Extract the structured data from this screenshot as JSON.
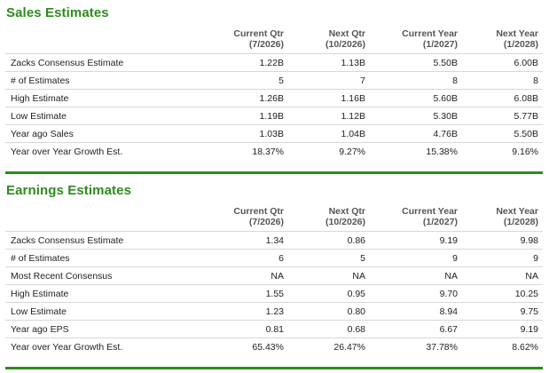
{
  "sales": {
    "title": "Sales Estimates",
    "columns": [
      {
        "line1": "Current Qtr",
        "line2": "(7/2026)"
      },
      {
        "line1": "Next Qtr",
        "line2": "(10/2026)"
      },
      {
        "line1": "Current Year",
        "line2": "(1/2027)"
      },
      {
        "line1": "Next Year",
        "line2": "(1/2028)"
      }
    ],
    "rows": [
      {
        "label": "Zacks Consensus Estimate",
        "values": [
          "1.22B",
          "1.13B",
          "5.50B",
          "6.00B"
        ]
      },
      {
        "label": "# of Estimates",
        "values": [
          "5",
          "7",
          "8",
          "8"
        ]
      },
      {
        "label": "High Estimate",
        "values": [
          "1.26B",
          "1.16B",
          "5.60B",
          "6.08B"
        ]
      },
      {
        "label": "Low Estimate",
        "values": [
          "1.19B",
          "1.12B",
          "5.30B",
          "5.77B"
        ]
      },
      {
        "label": "Year ago Sales",
        "values": [
          "1.03B",
          "1.04B",
          "4.76B",
          "5.50B"
        ]
      },
      {
        "label": "Year over Year Growth Est.",
        "values": [
          "18.37%",
          "9.27%",
          "15.38%",
          "9.16%"
        ]
      }
    ]
  },
  "earnings": {
    "title": "Earnings Estimates",
    "columns": [
      {
        "line1": "Current Qtr",
        "line2": "(7/2026)"
      },
      {
        "line1": "Next Qtr",
        "line2": "(10/2026)"
      },
      {
        "line1": "Current Year",
        "line2": "(1/2027)"
      },
      {
        "line1": "Next Year",
        "line2": "(1/2028)"
      }
    ],
    "rows": [
      {
        "label": "Zacks Consensus Estimate",
        "values": [
          "1.34",
          "0.86",
          "9.19",
          "9.98"
        ]
      },
      {
        "label": "# of Estimates",
        "values": [
          "6",
          "5",
          "9",
          "9"
        ]
      },
      {
        "label": "Most Recent Consensus",
        "values": [
          "NA",
          "NA",
          "NA",
          "NA"
        ]
      },
      {
        "label": "High Estimate",
        "values": [
          "1.55",
          "0.95",
          "9.70",
          "10.25"
        ]
      },
      {
        "label": "Low Estimate",
        "values": [
          "1.23",
          "0.80",
          "8.94",
          "9.75"
        ]
      },
      {
        "label": "Year ago EPS",
        "values": [
          "0.81",
          "0.68",
          "6.67",
          "9.19"
        ]
      },
      {
        "label": "Year over Year Growth Est.",
        "values": [
          "65.43%",
          "26.47%",
          "37.78%",
          "8.62%"
        ]
      }
    ]
  },
  "colors": {
    "accent": "#2e8b1e",
    "row_border": "#d8d8d8",
    "header_text": "#555555"
  }
}
